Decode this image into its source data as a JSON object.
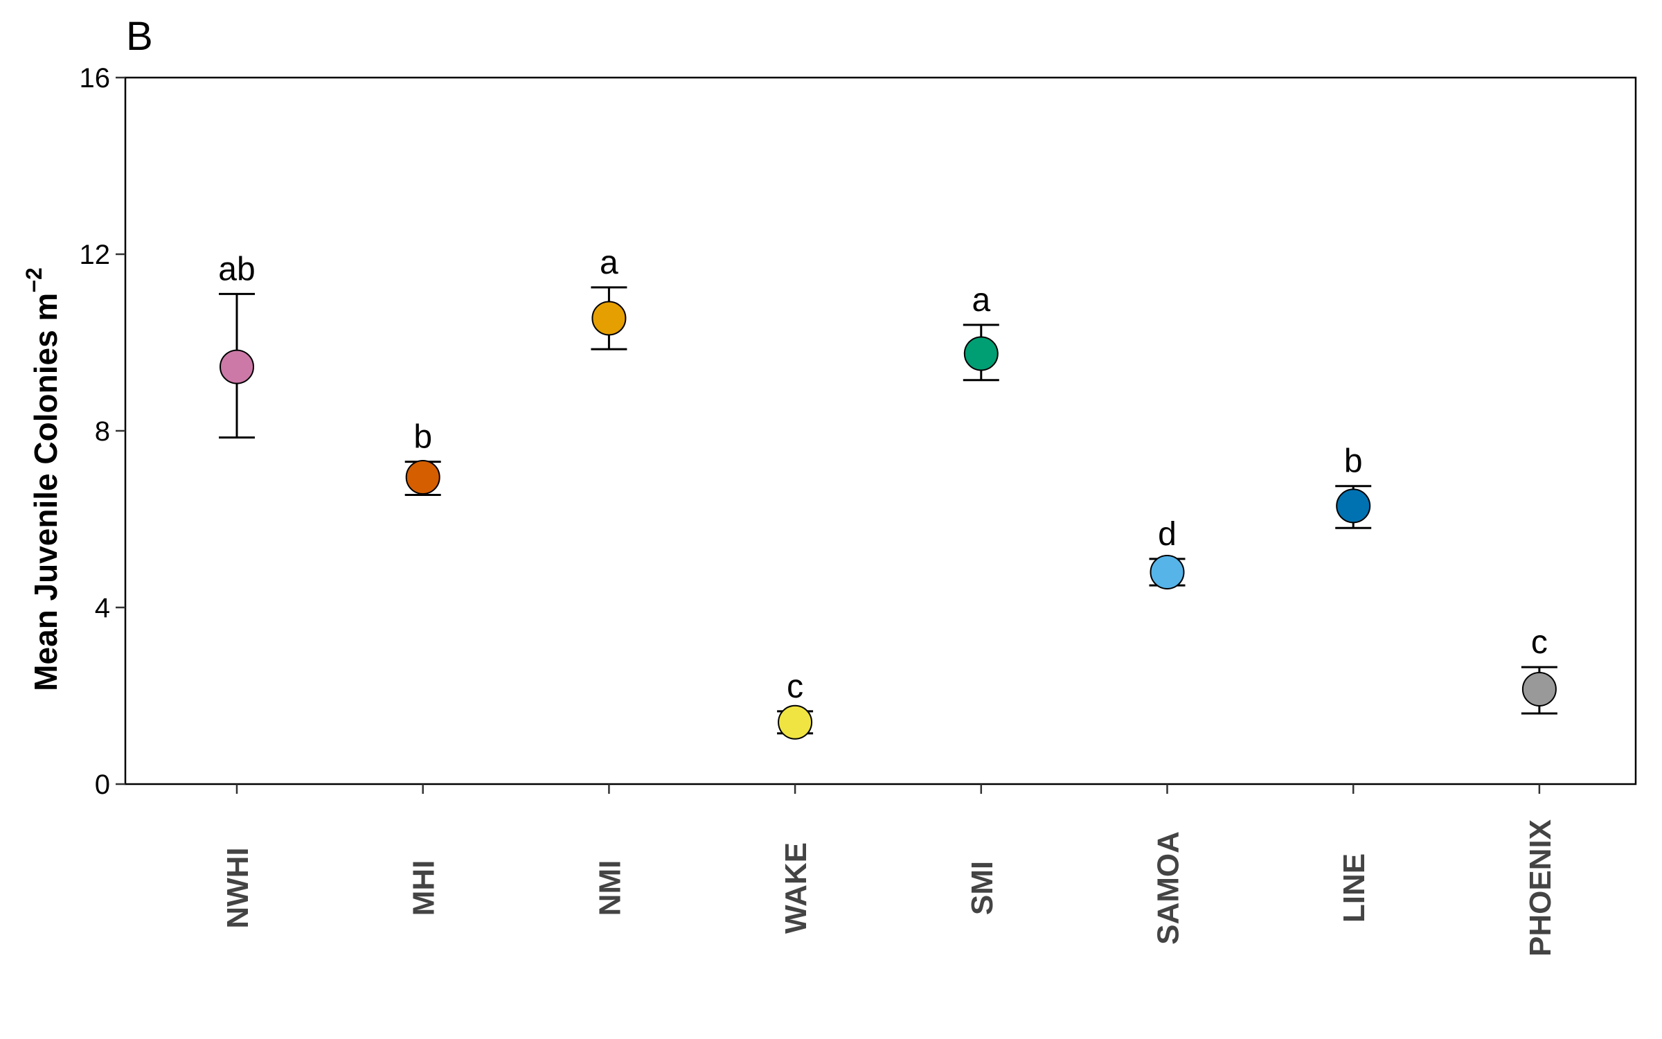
{
  "chart_data": {
    "type": "scatter",
    "panel_label": "B",
    "ylabel": "Mean Juvenile Colonies m",
    "ylabel_superscript": "−2",
    "xlabel": "",
    "ylim": [
      0,
      16
    ],
    "yticks": [
      0,
      4,
      8,
      12,
      16
    ],
    "grid": false,
    "categories": [
      "NWHI",
      "MHI",
      "NMI",
      "WAKE",
      "SMI",
      "SAMOA",
      "LINE",
      "PHOENIX"
    ],
    "values": [
      9.45,
      6.95,
      10.55,
      1.4,
      9.75,
      4.8,
      6.3,
      2.15
    ],
    "error_low": [
      7.85,
      6.55,
      9.85,
      1.15,
      9.15,
      4.5,
      5.8,
      1.6
    ],
    "error_high": [
      11.1,
      7.3,
      11.25,
      1.65,
      10.4,
      5.1,
      6.75,
      2.65
    ],
    "letters": [
      "ab",
      "b",
      "a",
      "c",
      "a",
      "d",
      "b",
      "c"
    ],
    "colors": [
      "#CC79A7",
      "#D55E00",
      "#E69F00",
      "#F0E442",
      "#009E73",
      "#56B4E9",
      "#0072B2",
      "#999999"
    ]
  }
}
